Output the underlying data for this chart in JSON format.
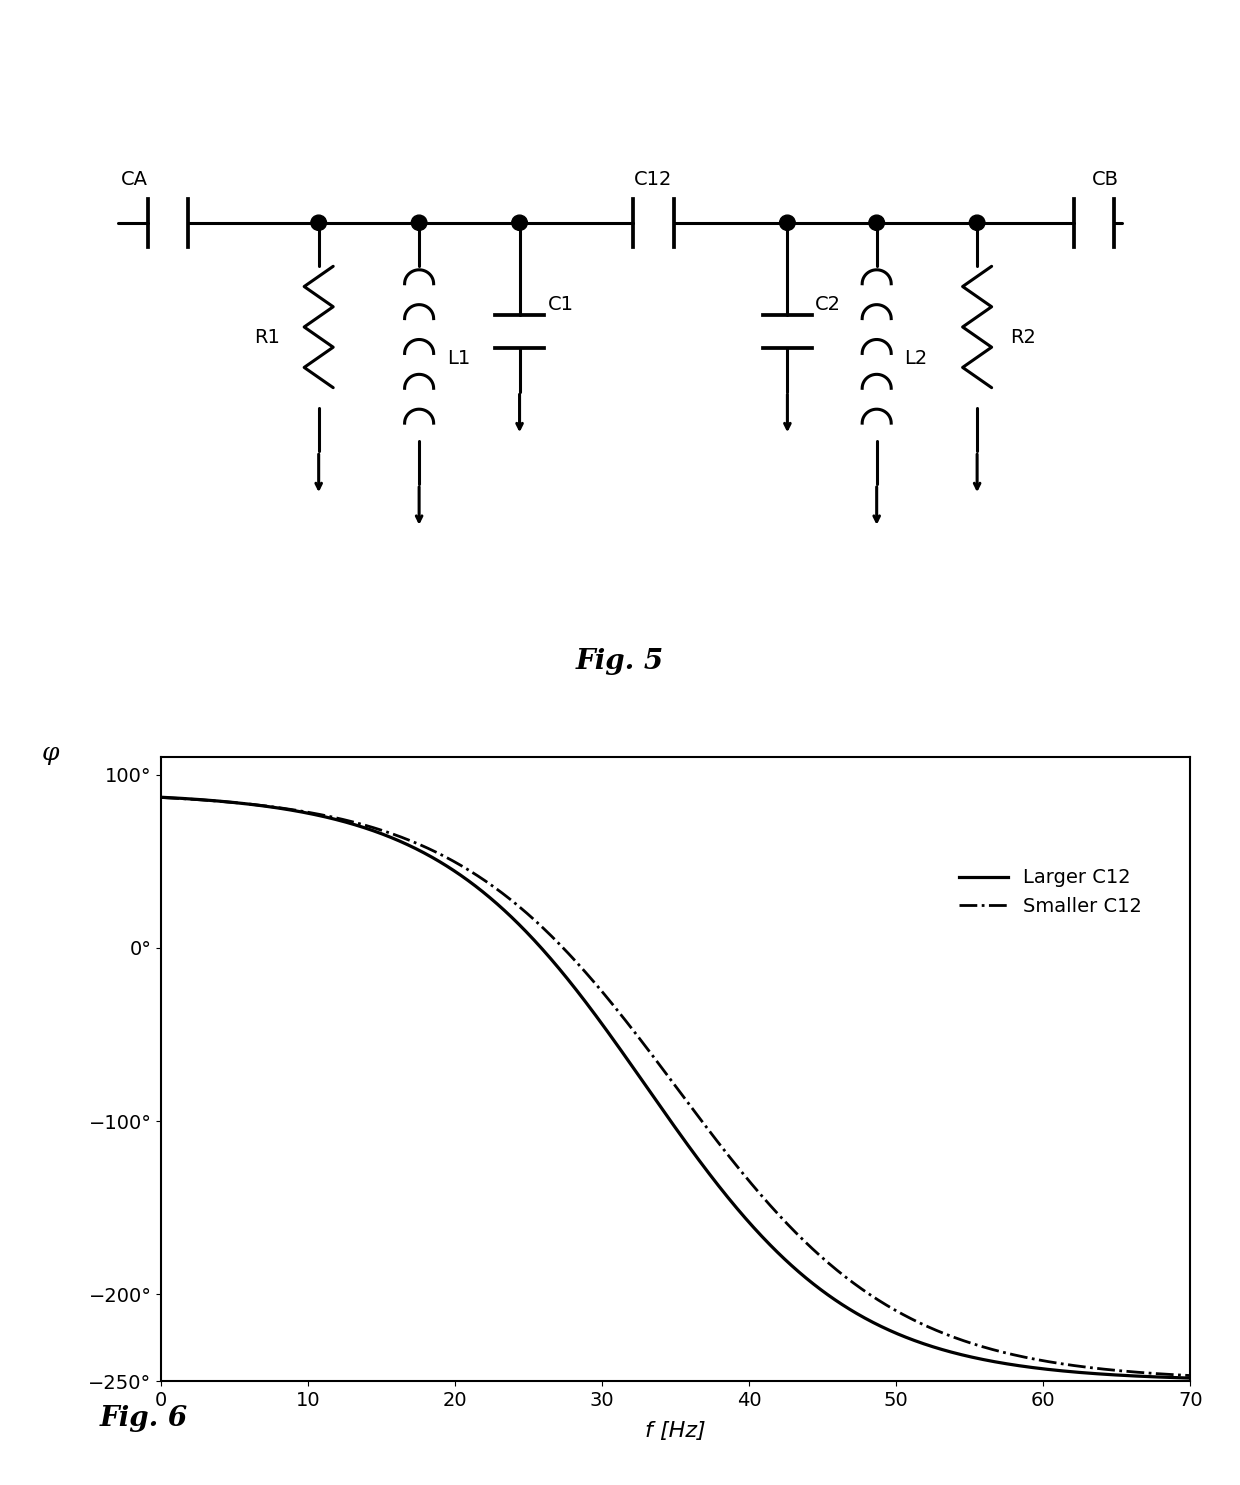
{
  "fig5_title": "Fig. 5",
  "fig6_title": "Fig. 6",
  "xlabel": "f [Hz]",
  "ylabel_symbol": "φ",
  "xlim": [
    0,
    70
  ],
  "ylim": [
    -250,
    110
  ],
  "yticks": [
    100,
    0,
    -100,
    -200,
    -250
  ],
  "ytick_labels": [
    "100°",
    "0°",
    "−100°",
    "−200°",
    "−250°"
  ],
  "xticks": [
    0,
    10,
    20,
    30,
    40,
    50,
    60,
    70
  ],
  "legend_entries": [
    "Larger C12",
    "Smaller C12"
  ],
  "line_color": "#000000",
  "background_color": "#ffffff",
  "line_width": 2.0,
  "font_size": 16
}
